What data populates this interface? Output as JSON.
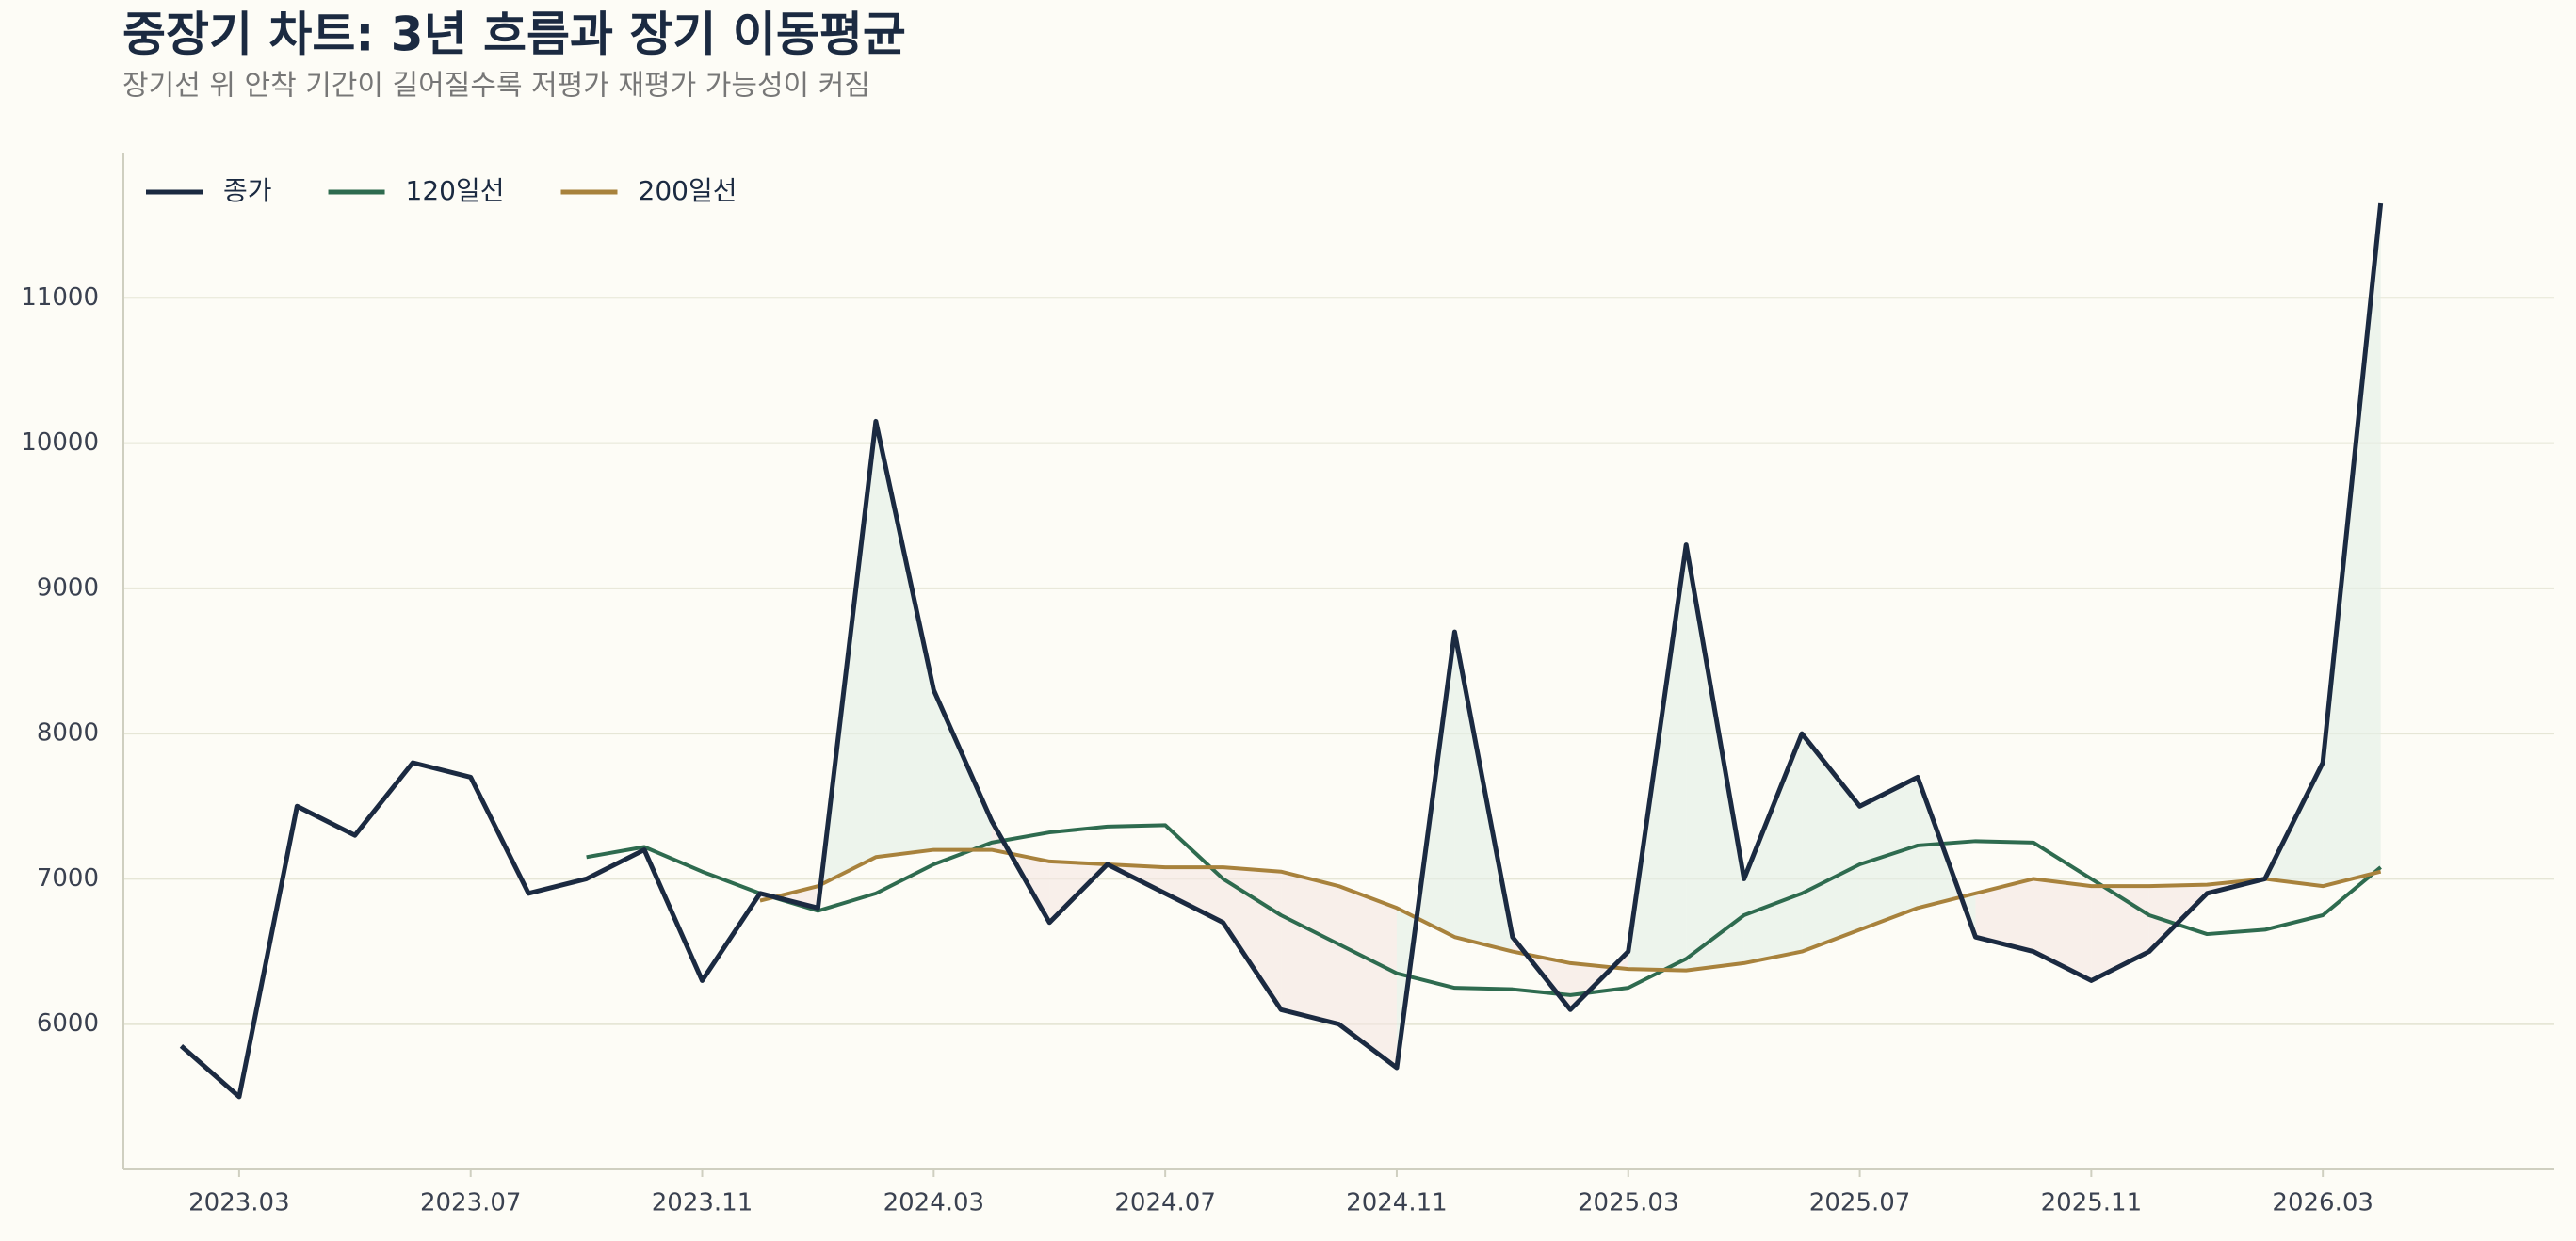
{
  "chart_data": {
    "type": "line",
    "title": "중장기 차트: 3년 흐름과 장기 이동평균",
    "subtitle": "장기선 위 안착 기간이 길어질수록 저평가 재평가 가능성이 커짐",
    "x": [
      "2023.02",
      "2023.03",
      "2023.04",
      "2023.05",
      "2023.06",
      "2023.07",
      "2023.08",
      "2023.09",
      "2023.10",
      "2023.11",
      "2023.12",
      "2024.01",
      "2024.02",
      "2024.03",
      "2024.04",
      "2024.05",
      "2024.06",
      "2024.07",
      "2024.08",
      "2024.09",
      "2024.10",
      "2024.11",
      "2024.12",
      "2025.01",
      "2025.02",
      "2025.03",
      "2025.04",
      "2025.05",
      "2025.06",
      "2025.07",
      "2025.08",
      "2025.09",
      "2025.10",
      "2025.11",
      "2025.12",
      "2026.01",
      "2026.02",
      "2026.03",
      "2026.04"
    ],
    "series": [
      {
        "name": "종가",
        "color": "#1b2a41",
        "values": [
          5850,
          5500,
          7500,
          7300,
          7800,
          7700,
          6900,
          7000,
          7200,
          6300,
          6900,
          6800,
          10150,
          8300,
          7400,
          6700,
          7100,
          6900,
          6700,
          6100,
          6000,
          5700,
          8700,
          6600,
          6100,
          6500,
          9300,
          7000,
          8000,
          7500,
          7700,
          6600,
          6500,
          6300,
          6500,
          6900,
          7000,
          7800,
          11650
        ]
      },
      {
        "name": "120일선",
        "color": "#2e6b4f",
        "values": [
          null,
          null,
          null,
          null,
          null,
          null,
          null,
          7150,
          7220,
          7050,
          6900,
          6780,
          6900,
          7100,
          7250,
          7320,
          7360,
          7370,
          7000,
          6750,
          6550,
          6350,
          6250,
          6240,
          6200,
          6250,
          6450,
          6750,
          6900,
          7100,
          7230,
          7260,
          7250,
          7000,
          6750,
          6620,
          6650,
          6750,
          7080
        ]
      },
      {
        "name": "200일선",
        "color": "#a8823c",
        "values": [
          null,
          null,
          null,
          null,
          null,
          null,
          null,
          null,
          null,
          null,
          6850,
          6950,
          7150,
          7200,
          7200,
          7120,
          7100,
          7080,
          7080,
          7050,
          6950,
          6800,
          6600,
          6500,
          6420,
          6380,
          6370,
          6420,
          6500,
          6650,
          6800,
          6900,
          7000,
          6950,
          6950,
          6960,
          7000,
          6950,
          7050
        ]
      }
    ],
    "xlim": [
      "2023.01",
      "2026.07"
    ],
    "xticks": [
      "2023.03",
      "2023.07",
      "2023.11",
      "2024.03",
      "2024.07",
      "2024.11",
      "2025.03",
      "2025.07",
      "2025.11",
      "2026.03"
    ],
    "ylim": [
      5000,
      12000
    ],
    "yticks": [
      6000,
      7000,
      8000,
      9000,
      10000,
      11000
    ],
    "grid": true,
    "legend": "upper left"
  }
}
